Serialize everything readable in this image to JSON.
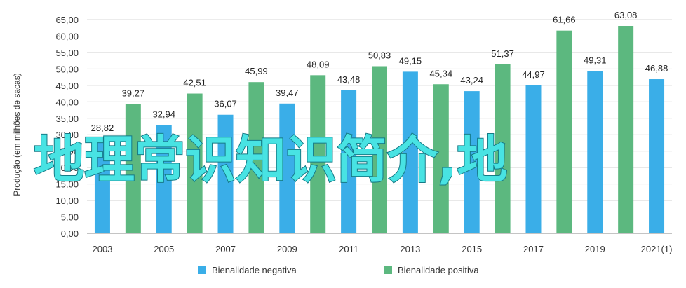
{
  "chart_data": {
    "type": "bar",
    "ylabel": "Produção (em milhões de sacas)",
    "xlabel": "",
    "ylim": [
      0,
      65
    ],
    "ytick_step": 5,
    "grid": true,
    "legend_position": "bottom-center",
    "x_tick_labels": [
      "2003",
      "2005",
      "2007",
      "2009",
      "2011",
      "2013",
      "2015",
      "2017",
      "2019",
      "2021(1)"
    ],
    "years": [
      "2003",
      "2004",
      "2005",
      "2006",
      "2007",
      "2008",
      "2009",
      "2010",
      "2011",
      "2012",
      "2013",
      "2014",
      "2015",
      "2016",
      "2017",
      "2018",
      "2019",
      "2020",
      "2021(1)"
    ],
    "series": [
      {
        "name": "Bienalidade negativa",
        "color": "#3aaee8",
        "points": [
          {
            "x": "2003",
            "y": 28.82,
            "label": "28,82"
          },
          {
            "x": "2005",
            "y": 32.94,
            "label": "32,94"
          },
          {
            "x": "2007",
            "y": 36.07,
            "label": "36,07"
          },
          {
            "x": "2009",
            "y": 39.47,
            "label": "39,47"
          },
          {
            "x": "2011",
            "y": 43.48,
            "label": "43,48"
          },
          {
            "x": "2013",
            "y": 49.15,
            "label": "49,15"
          },
          {
            "x": "2015",
            "y": 43.24,
            "label": "43,24"
          },
          {
            "x": "2017",
            "y": 44.97,
            "label": "44,97"
          },
          {
            "x": "2019",
            "y": 49.31,
            "label": "49,31"
          },
          {
            "x": "2021(1)",
            "y": 46.88,
            "label": "46,88"
          }
        ]
      },
      {
        "name": "Bienalidade positiva",
        "color": "#5cb87f",
        "points": [
          {
            "x": "2004",
            "y": 39.27,
            "label": "39,27"
          },
          {
            "x": "2006",
            "y": 42.51,
            "label": "42,51"
          },
          {
            "x": "2008",
            "y": 45.99,
            "label": "45,99"
          },
          {
            "x": "2010",
            "y": 48.09,
            "label": "48,09"
          },
          {
            "x": "2012",
            "y": 50.83,
            "label": "50,83"
          },
          {
            "x": "2014",
            "y": 45.34,
            "label": "45,34"
          },
          {
            "x": "2016",
            "y": 51.37,
            "label": "51,37"
          },
          {
            "x": "2018",
            "y": 61.66,
            "label": "61,66"
          },
          {
            "x": "2020",
            "y": 63.08,
            "label": "63,08"
          }
        ]
      }
    ]
  },
  "overlay_text": "地理常识知识简介,地",
  "colors": {
    "gridline": "#d9d9d9",
    "axis": "#888888",
    "overlay_fill": "#48e3e3"
  }
}
